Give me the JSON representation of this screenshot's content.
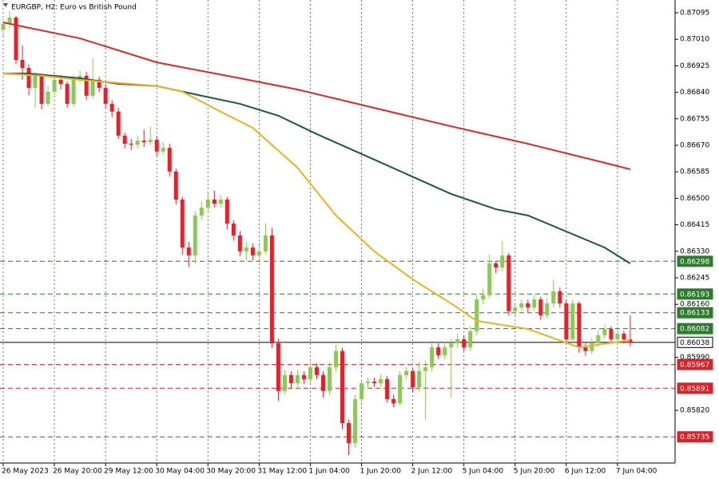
{
  "chart_data": {
    "type": "candlestick",
    "title": "EURGBP, H2:  Euro vs British Pound",
    "xlim": [
      -0.5,
      105
    ],
    "ylim": [
      0.85651,
      0.87136
    ],
    "xticks": [
      {
        "value": 0,
        "label": "26 May 2023"
      },
      {
        "value": 8,
        "label": "26 May 20:00"
      },
      {
        "value": 16,
        "label": "29 May 12:00"
      },
      {
        "value": 24,
        "label": "30 May 04:00"
      },
      {
        "value": 32,
        "label": "30 May 20:00"
      },
      {
        "value": 40,
        "label": "31 May 12:00"
      },
      {
        "value": 48,
        "label": "1 Jun 04:00"
      },
      {
        "value": 56,
        "label": "1 Jun 20:00"
      },
      {
        "value": 64,
        "label": "2 Jun 12:00"
      },
      {
        "value": 72,
        "label": "5 Jun 04:00"
      },
      {
        "value": 80,
        "label": "5 Jun 20:00"
      },
      {
        "value": 88,
        "label": "6 Jun 12:00"
      },
      {
        "value": 96,
        "label": "7 Jun 04:00"
      }
    ],
    "yticks": [
      0.87095,
      {
        "value": 0.8701,
        "label": "0.87010"
      },
      0.86925,
      {
        "value": 0.8684,
        "label": "0.86840"
      },
      0.86755,
      {
        "value": 0.8667,
        "label": "0.86670"
      },
      0.86585,
      {
        "value": 0.865,
        "label": "0.86500"
      },
      0.86415,
      {
        "value": 0.8633,
        "label": "0.86330"
      },
      0.86245,
      {
        "value": 0.8616,
        "label": "0.86160"
      },
      {
        "value": 0.8599,
        "label": "0.85990"
      },
      {
        "value": 0.8582,
        "label": "0.85820"
      }
    ],
    "grid": true,
    "up_color": "#8cc85a",
    "down_color": "#e8202a",
    "candles": {
      "open": [
        0.8704,
        0.87059,
        0.8708,
        0.86944,
        0.86918,
        0.86854,
        0.86893,
        0.86803,
        0.86842,
        0.8688,
        0.86867,
        0.86803,
        0.8688,
        0.86893,
        0.86829,
        0.8688,
        0.86854,
        0.86803,
        0.86778,
        0.86701,
        0.86675,
        0.86672,
        0.86685,
        0.8668,
        0.86688,
        0.8665,
        0.86662,
        0.86586,
        0.86496,
        0.86342,
        0.86317,
        0.86445,
        0.8647,
        0.86496,
        0.86483,
        0.86496,
        0.86419,
        0.86381,
        0.8633,
        0.86342,
        0.86317,
        0.8633,
        0.86381,
        0.86035,
        0.85882,
        0.85933,
        0.85907,
        0.85933,
        0.8592,
        0.85958,
        0.85933,
        0.85882,
        0.85958,
        0.8601,
        0.85779,
        0.85715,
        0.85856,
        0.85907,
        0.85912,
        0.85907,
        0.8592,
        0.85856,
        0.85843,
        0.85933,
        0.85946,
        0.85894,
        0.85946,
        0.85958,
        0.86022,
        0.85997,
        0.86022,
        0.86035,
        0.86048,
        0.86022,
        0.86074,
        0.86176,
        0.86189,
        0.86291,
        0.86278,
        0.86317,
        0.86138,
        0.8615,
        0.86163,
        0.8615,
        0.86176,
        0.86125,
        0.86163,
        0.86202,
        0.86163,
        0.86048,
        0.86163,
        0.86022,
        0.8601,
        0.86035,
        0.86061,
        0.86081,
        0.86048,
        0.86066,
        0.86048
      ],
      "high": [
        0.87075,
        0.871,
        0.87085,
        0.8699,
        0.8693,
        0.86905,
        0.869,
        0.8686,
        0.869,
        0.86895,
        0.86875,
        0.86895,
        0.8691,
        0.86905,
        0.8695,
        0.8689,
        0.86865,
        0.86815,
        0.8679,
        0.8671,
        0.8669,
        0.867,
        0.8672,
        0.8673,
        0.867,
        0.8668,
        0.86675,
        0.86595,
        0.86505,
        0.8636,
        0.8646,
        0.8649,
        0.8652,
        0.86525,
        0.8651,
        0.86505,
        0.8643,
        0.86395,
        0.8636,
        0.86355,
        0.8635,
        0.8642,
        0.86405,
        0.8605,
        0.8595,
        0.85945,
        0.8595,
        0.85945,
        0.85975,
        0.8597,
        0.85945,
        0.85975,
        0.8603,
        0.8602,
        0.8579,
        0.8587,
        0.8592,
        0.85925,
        0.85925,
        0.85935,
        0.8593,
        0.8587,
        0.85945,
        0.8596,
        0.85955,
        0.85975,
        0.8598,
        0.86035,
        0.86035,
        0.8604,
        0.8605,
        0.86065,
        0.8606,
        0.8609,
        0.8619,
        0.8621,
        0.8632,
        0.863,
        0.86363,
        0.86325,
        0.86165,
        0.86175,
        0.86175,
        0.8619,
        0.86185,
        0.8618,
        0.8624,
        0.86215,
        0.86175,
        0.86175,
        0.8617,
        0.86035,
        0.8605,
        0.86075,
        0.86095,
        0.8609,
        0.8608,
        0.86075,
        0.86125
      ],
      "low": [
        0.8702,
        0.87045,
        0.8693,
        0.8688,
        0.8683,
        0.8679,
        0.86785,
        0.86795,
        0.8683,
        0.8685,
        0.8679,
        0.86795,
        0.8687,
        0.86815,
        0.8682,
        0.8684,
        0.8679,
        0.8676,
        0.8669,
        0.8666,
        0.86655,
        0.8666,
        0.86665,
        0.8667,
        0.86635,
        0.8664,
        0.8657,
        0.8648,
        0.8632,
        0.8628,
        0.8629,
        0.8643,
        0.86455,
        0.8647,
        0.8647,
        0.864,
        0.86365,
        0.86315,
        0.863,
        0.863,
        0.86305,
        0.8632,
        0.8602,
        0.8585,
        0.8587,
        0.8589,
        0.85895,
        0.85905,
        0.8591,
        0.8592,
        0.8586,
        0.8587,
        0.85945,
        0.8576,
        0.85677,
        0.857,
        0.85845,
        0.8589,
        0.85895,
        0.85895,
        0.85845,
        0.8583,
        0.85835,
        0.8592,
        0.8588,
        0.8588,
        0.8579,
        0.85945,
        0.85985,
        0.85985,
        0.8586,
        0.8602,
        0.8601,
        0.8601,
        0.8606,
        0.8616,
        0.8618,
        0.8626,
        0.86265,
        0.86125,
        0.86125,
        0.8614,
        0.86135,
        0.8614,
        0.8611,
        0.86115,
        0.8615,
        0.8615,
        0.86035,
        0.86035,
        0.86005,
        0.85995,
        0.86,
        0.86025,
        0.8605,
        0.86035,
        0.8604,
        0.86035,
        0.86025
      ],
      "close": [
        0.87059,
        0.8708,
        0.86944,
        0.86918,
        0.86854,
        0.86893,
        0.86803,
        0.86842,
        0.8688,
        0.86867,
        0.86803,
        0.8688,
        0.86893,
        0.86829,
        0.8688,
        0.86854,
        0.86803,
        0.86778,
        0.86701,
        0.86675,
        0.86672,
        0.86685,
        0.8668,
        0.86688,
        0.8665,
        0.86662,
        0.86586,
        0.86496,
        0.86342,
        0.86317,
        0.86445,
        0.8647,
        0.86496,
        0.86483,
        0.86496,
        0.86419,
        0.86381,
        0.8633,
        0.86342,
        0.86317,
        0.8633,
        0.86381,
        0.86035,
        0.85882,
        0.85933,
        0.85907,
        0.85933,
        0.8592,
        0.85958,
        0.85933,
        0.85882,
        0.85958,
        0.8601,
        0.85779,
        0.85715,
        0.85856,
        0.85907,
        0.85912,
        0.85907,
        0.8592,
        0.85856,
        0.85843,
        0.85933,
        0.85946,
        0.85894,
        0.85946,
        0.85958,
        0.86022,
        0.85997,
        0.86022,
        0.86035,
        0.86048,
        0.86022,
        0.86074,
        0.86176,
        0.86189,
        0.86291,
        0.86278,
        0.86317,
        0.86138,
        0.8615,
        0.86163,
        0.8615,
        0.86176,
        0.86125,
        0.86163,
        0.86202,
        0.86163,
        0.86048,
        0.86163,
        0.86022,
        0.8601,
        0.86035,
        0.86061,
        0.86081,
        0.86048,
        0.86066,
        0.86048,
        0.86038
      ]
    },
    "lines": [
      {
        "color": "#e0262b",
        "x": [
          0,
          12,
          24,
          37,
          46,
          58,
          70,
          82,
          94,
          98
        ],
        "values": [
          0.87064,
          0.87013,
          0.86936,
          0.86885,
          0.86849,
          0.8679,
          0.86731,
          0.86675,
          0.86614,
          0.86593
        ]
      },
      {
        "color": "#175c3c",
        "x": [
          0,
          4,
          12,
          18,
          24,
          31,
          37,
          43,
          49,
          58,
          70,
          77,
          82,
          94,
          98
        ],
        "values": [
          0.869,
          0.869,
          0.86885,
          0.86867,
          0.8686,
          0.86829,
          0.86803,
          0.86765,
          0.86706,
          0.86624,
          0.86514,
          0.86465,
          0.86445,
          0.86342,
          0.86291
        ]
      },
      {
        "color": "#f2b01e",
        "x": [
          0,
          6,
          12,
          24,
          28,
          34,
          39,
          46,
          52,
          58,
          64,
          70,
          74,
          82,
          90,
          98
        ],
        "values": [
          0.869,
          0.86893,
          0.8688,
          0.8686,
          0.86842,
          0.86778,
          0.86726,
          0.86598,
          0.86445,
          0.8633,
          0.8624,
          0.86163,
          0.86107,
          0.86081,
          0.86022,
          0.86045
        ]
      }
    ],
    "levels": [
      {
        "value": 0.86298,
        "color": "#2b7d2b",
        "style": "dashed"
      },
      {
        "value": 0.86193,
        "color": "#2b7d2b",
        "style": "dashed"
      },
      {
        "value": 0.86133,
        "color": "#2b7d2b",
        "style": "dashed"
      },
      {
        "value": 0.86082,
        "color": "#2b7d2b",
        "style": "dashed"
      },
      {
        "value": 0.86038,
        "color": "#000000",
        "style": "solid"
      },
      {
        "value": 0.85967,
        "color": "#d8232a",
        "style": "dashed"
      },
      {
        "value": 0.85891,
        "color": "#d8232a",
        "style": "dashed"
      },
      {
        "value": 0.85735,
        "color": "#d8232a",
        "style": "dashed"
      }
    ]
  }
}
